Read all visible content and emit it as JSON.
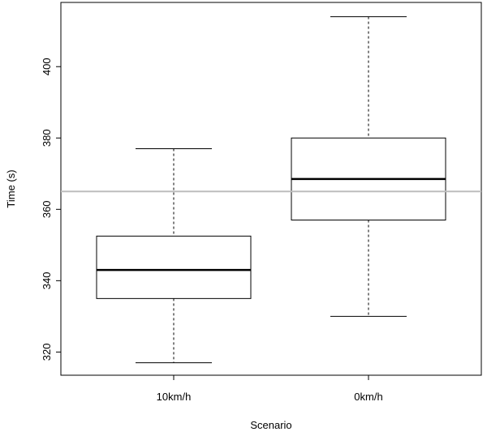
{
  "chart_data": {
    "type": "boxplot",
    "title": "",
    "xlabel": "Scenario",
    "ylabel": "Time (s)",
    "ylim": [
      313.5,
      418
    ],
    "yticks": [
      320,
      340,
      360,
      380,
      400
    ],
    "categories": [
      "10km/h",
      "0km/h"
    ],
    "boxes": [
      {
        "category": "10km/h",
        "min": 317,
        "q1": 335,
        "median": 343,
        "q3": 352.5,
        "max": 377
      },
      {
        "category": "0km/h",
        "min": 330,
        "q1": 357,
        "median": 368.5,
        "q3": 380,
        "max": 414
      }
    ],
    "reference_line": {
      "y": 365,
      "color": "#bdbdbd"
    },
    "grid": false,
    "colors": {
      "box_fill": "#ffffff",
      "stroke": "#000000"
    }
  }
}
